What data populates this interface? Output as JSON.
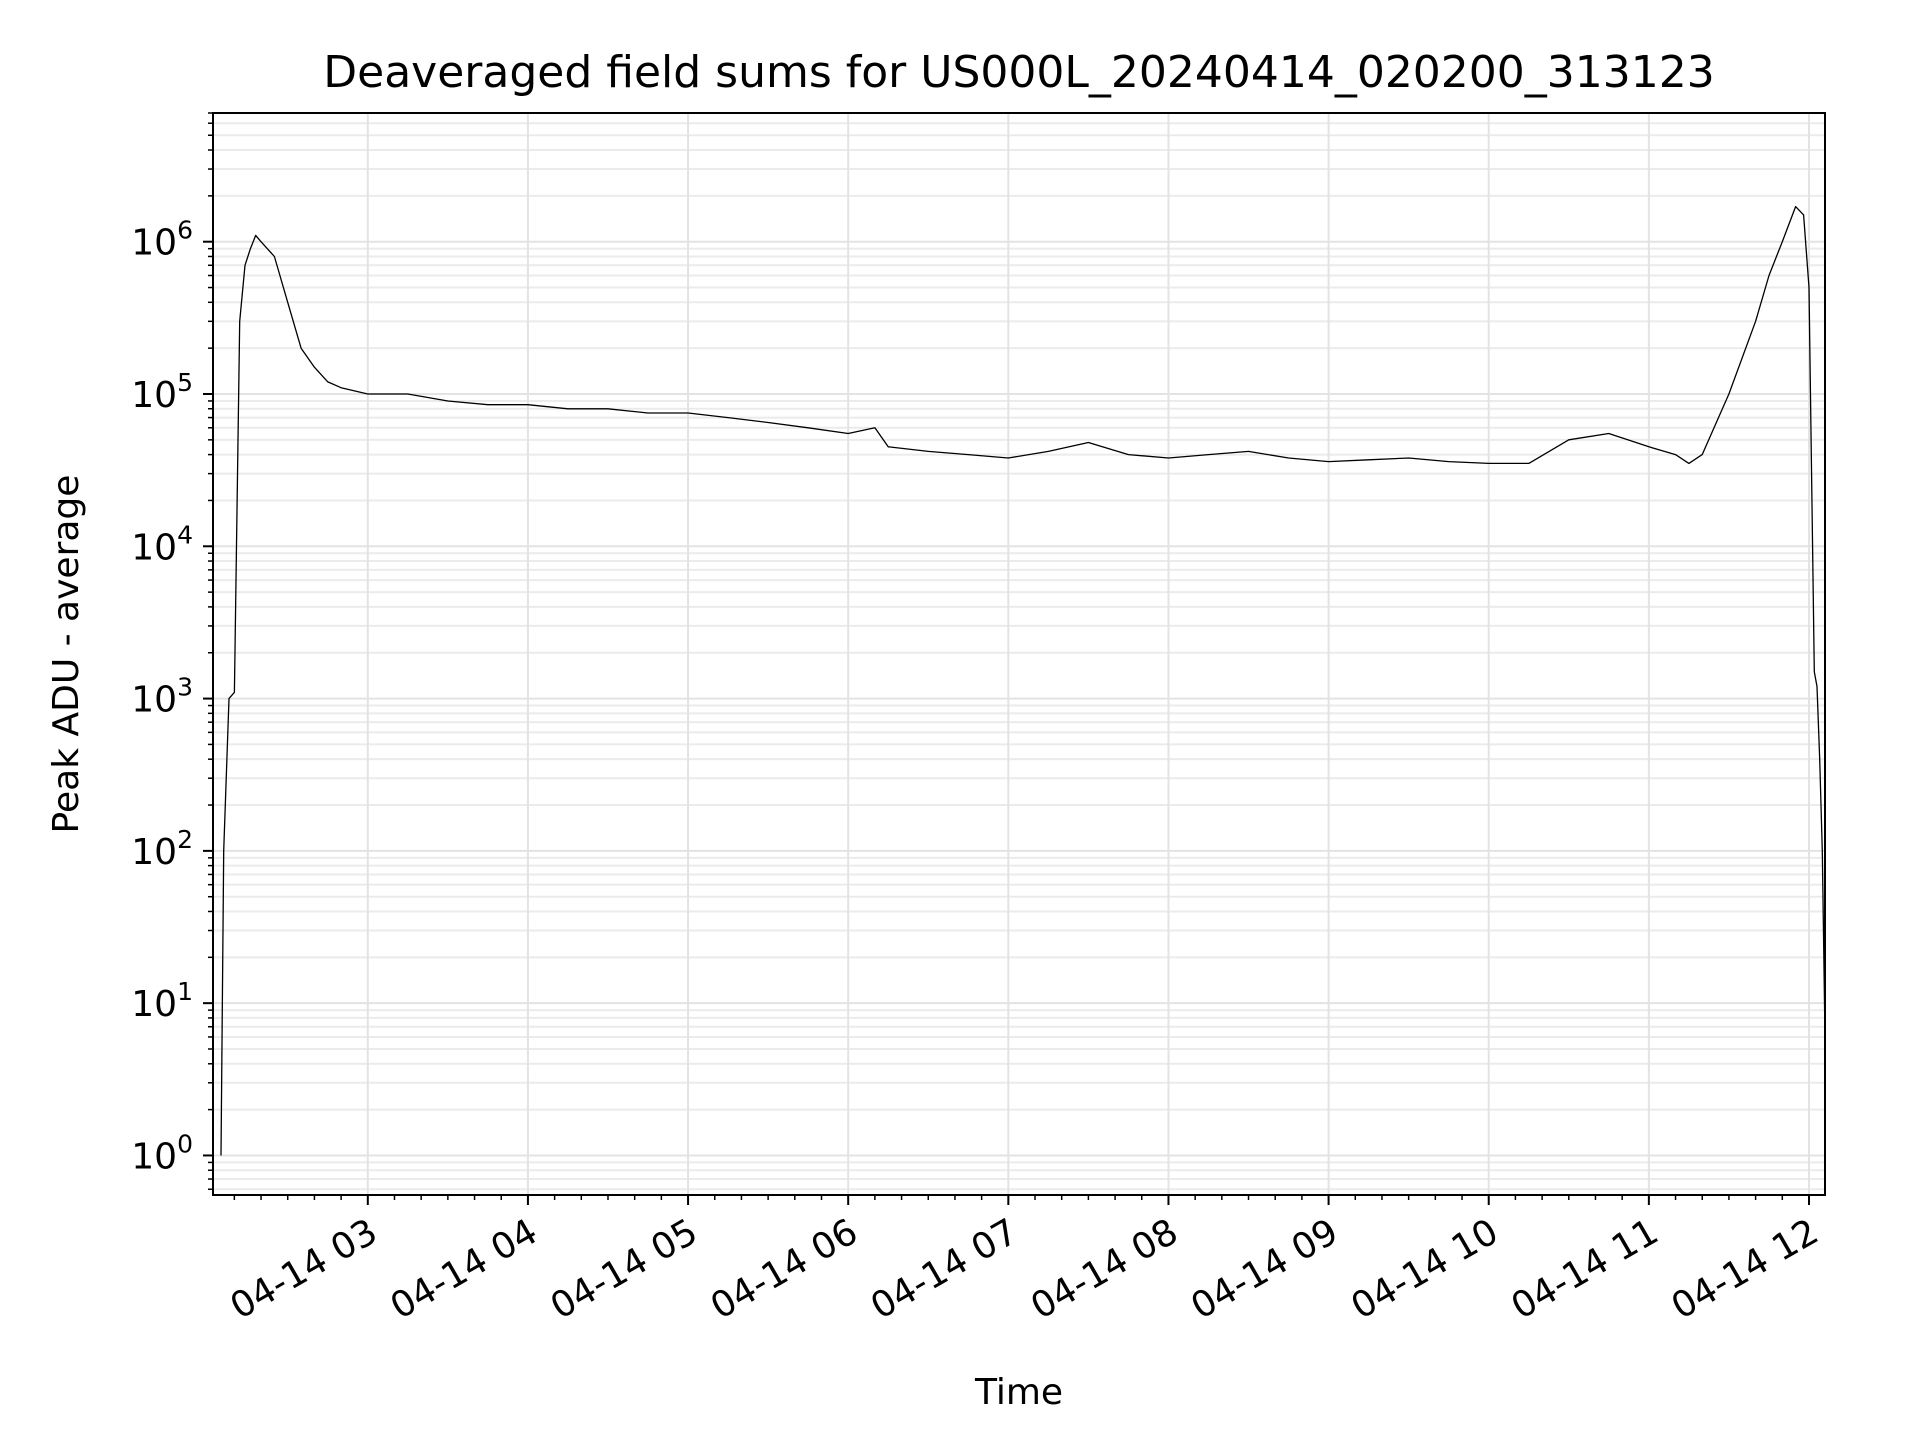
{
  "chart_data": {
    "type": "line",
    "title": "Deaveraged field sums for US000L_20240414_020200_313123",
    "xlabel": "Time",
    "ylabel": "Peak ADU - average",
    "yscale": "log",
    "ylim": [
      0.55,
      7000000
    ],
    "xlim": [
      "2024-04-14 02:02",
      "2024-04-14 12:06"
    ],
    "grid": true,
    "x_ticks": [
      "2024-04-14 03:00",
      "2024-04-14 04:00",
      "2024-04-14 05:00",
      "2024-04-14 06:00",
      "2024-04-14 07:00",
      "2024-04-14 08:00",
      "2024-04-14 09:00",
      "2024-04-14 10:00",
      "2024-04-14 11:00",
      "2024-04-14 12:00"
    ],
    "x_tick_labels": [
      "04-14 03",
      "04-14 04",
      "04-14 05",
      "04-14 06",
      "04-14 07",
      "04-14 08",
      "04-14 09",
      "04-14 10",
      "04-14 11",
      "04-14 12"
    ],
    "y_ticks": [
      1,
      10,
      100,
      1000,
      10000,
      100000,
      1000000
    ],
    "y_tick_labels": [
      {
        "base": "10",
        "exp": "0"
      },
      {
        "base": "10",
        "exp": "1"
      },
      {
        "base": "10",
        "exp": "2"
      },
      {
        "base": "10",
        "exp": "3"
      },
      {
        "base": "10",
        "exp": "4"
      },
      {
        "base": "10",
        "exp": "5"
      },
      {
        "base": "10",
        "exp": "6"
      }
    ],
    "color": "#000000",
    "series": [
      {
        "x": [
          "2024-04-14 02:05",
          "2024-04-14 02:06",
          "2024-04-14 02:08",
          "2024-04-14 02:10",
          "2024-04-14 02:12",
          "2024-04-14 02:14",
          "2024-04-14 02:16",
          "2024-04-14 02:18",
          "2024-04-14 02:20",
          "2024-04-14 02:25",
          "2024-04-14 02:30",
          "2024-04-14 02:35",
          "2024-04-14 02:40",
          "2024-04-14 02:45",
          "2024-04-14 02:50",
          "2024-04-14 03:00",
          "2024-04-14 03:15",
          "2024-04-14 03:30",
          "2024-04-14 03:45",
          "2024-04-14 04:00",
          "2024-04-14 04:15",
          "2024-04-14 04:30",
          "2024-04-14 04:45",
          "2024-04-14 05:00",
          "2024-04-14 05:15",
          "2024-04-14 05:30",
          "2024-04-14 05:45",
          "2024-04-14 06:00",
          "2024-04-14 06:10",
          "2024-04-14 06:15",
          "2024-04-14 06:30",
          "2024-04-14 06:45",
          "2024-04-14 07:00",
          "2024-04-14 07:15",
          "2024-04-14 07:30",
          "2024-04-14 07:45",
          "2024-04-14 08:00",
          "2024-04-14 08:15",
          "2024-04-14 08:30",
          "2024-04-14 08:45",
          "2024-04-14 09:00",
          "2024-04-14 09:15",
          "2024-04-14 09:30",
          "2024-04-14 09:45",
          "2024-04-14 10:00",
          "2024-04-14 10:15",
          "2024-04-14 10:30",
          "2024-04-14 10:45",
          "2024-04-14 11:00",
          "2024-04-14 11:10",
          "2024-04-14 11:15",
          "2024-04-14 11:20",
          "2024-04-14 11:30",
          "2024-04-14 11:40",
          "2024-04-14 11:45",
          "2024-04-14 11:50",
          "2024-04-14 11:55",
          "2024-04-14 11:58",
          "2024-04-14 12:00",
          "2024-04-14 12:02",
          "2024-04-14 12:03",
          "2024-04-14 12:04",
          "2024-04-14 12:05",
          "2024-04-14 12:06"
        ],
        "y": [
          1,
          100,
          1000,
          1100,
          300000,
          700000,
          900000,
          1100000,
          1000000,
          800000,
          400000,
          200000,
          150000,
          120000,
          110000,
          100000,
          100000,
          90000,
          85000,
          85000,
          80000,
          80000,
          75000,
          75000,
          70000,
          65000,
          60000,
          55000,
          60000,
          45000,
          42000,
          40000,
          38000,
          42000,
          48000,
          40000,
          38000,
          40000,
          42000,
          38000,
          36000,
          37000,
          38000,
          36000,
          35000,
          35000,
          50000,
          55000,
          45000,
          40000,
          35000,
          40000,
          100000,
          300000,
          600000,
          1000000,
          1700000,
          1500000,
          500000,
          1500,
          1200,
          400,
          100,
          6
        ]
      }
    ]
  }
}
